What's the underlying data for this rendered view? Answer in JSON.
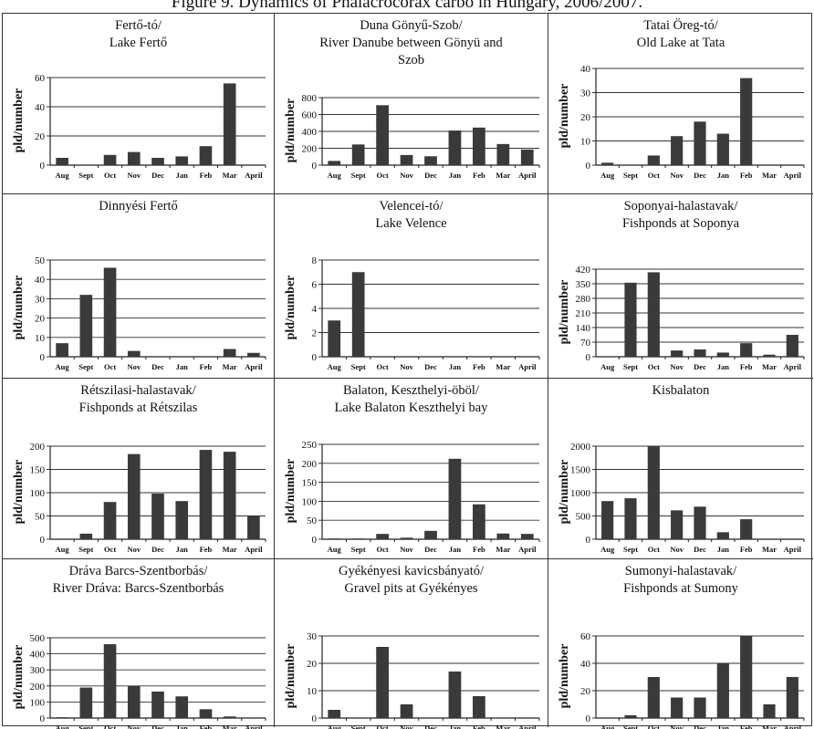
{
  "figure_title": "Figure 9. Dynamics of Phalacrocorax carbo in Hungary, 2006/2007.",
  "chart_data": [
    {
      "type": "bar",
      "title": [
        "Fertő-tó/",
        "Lake Fertő"
      ],
      "ylabel": "pld/number",
      "categories": [
        "Aug",
        "Sept",
        "Oct",
        "Nov",
        "Dec",
        "Jan",
        "Feb",
        "Mar",
        "April"
      ],
      "values": [
        5,
        0,
        7,
        9,
        5,
        6,
        13,
        56,
        0
      ],
      "ylim": [
        0,
        60
      ],
      "yticks": [
        0,
        20,
        40,
        60
      ]
    },
    {
      "type": "bar",
      "title": [
        "Duna Gönyű-Szob/",
        "River Danube between Gönyü and",
        "Szob"
      ],
      "ylabel": "pld/number",
      "categories": [
        "Aug",
        "Sept",
        "Oct",
        "Nov",
        "Dec",
        "Jan",
        "Feb",
        "Mar",
        "April"
      ],
      "values": [
        50,
        245,
        710,
        120,
        105,
        410,
        445,
        250,
        185
      ],
      "ylim": [
        0,
        800
      ],
      "yticks": [
        0,
        200,
        400,
        600,
        800
      ]
    },
    {
      "type": "bar",
      "title": [
        "Tatai Öreg-tó/",
        "Old Lake at Tata"
      ],
      "ylabel": "pld/number",
      "categories": [
        "Aug",
        "Sept",
        "Oct",
        "Nov",
        "Dec",
        "Jan",
        "Feb",
        "Mar",
        "April"
      ],
      "values": [
        1,
        0,
        4,
        12,
        18,
        13,
        36,
        0,
        0
      ],
      "ylim": [
        0,
        40
      ],
      "yticks": [
        0,
        10,
        20,
        30,
        40
      ]
    },
    {
      "type": "bar",
      "title": [
        "Dinnyési Fertő"
      ],
      "ylabel": "pld/number",
      "categories": [
        "Aug",
        "Sept",
        "Oct",
        "Nov",
        "Dec",
        "Jan",
        "Feb",
        "Mar",
        "April"
      ],
      "values": [
        7,
        32,
        46,
        3,
        0,
        0,
        0,
        4,
        2
      ],
      "ylim": [
        0,
        50
      ],
      "yticks": [
        0,
        10,
        20,
        30,
        40,
        50
      ]
    },
    {
      "type": "bar",
      "title": [
        "Velencei-tó/",
        "Lake Velence"
      ],
      "ylabel": "pld/number",
      "categories": [
        "Aug",
        "Sept",
        "Oct",
        "Nov",
        "Dec",
        "Jan",
        "Feb",
        "Mar",
        "April"
      ],
      "values": [
        3,
        7,
        0,
        0,
        0,
        0,
        0,
        0,
        0
      ],
      "ylim": [
        0,
        8
      ],
      "yticks": [
        0,
        2,
        4,
        6,
        8
      ]
    },
    {
      "type": "bar",
      "title": [
        "Soponyai-halastavak/",
        "Fishponds at Soponya"
      ],
      "ylabel": "pld/number",
      "categories": [
        "Aug",
        "Sept",
        "Oct",
        "Nov",
        "Dec",
        "Jan",
        "Feb",
        "Mar",
        "April"
      ],
      "values": [
        0,
        355,
        405,
        30,
        35,
        20,
        65,
        10,
        105
      ],
      "ylim": [
        0,
        420
      ],
      "yticks": [
        0,
        70,
        140,
        210,
        280,
        350,
        420
      ]
    },
    {
      "type": "bar",
      "title": [
        "Rétszilasi-halastavak/",
        "Fishponds at Rétszilas"
      ],
      "ylabel": "pld/number",
      "categories": [
        "Aug",
        "Sept",
        "Oct",
        "Nov",
        "Dec",
        "Jan",
        "Feb",
        "Mar",
        "April"
      ],
      "values": [
        0,
        12,
        80,
        183,
        98,
        82,
        192,
        188,
        50
      ],
      "ylim": [
        0,
        200
      ],
      "yticks": [
        0,
        50,
        100,
        150,
        200
      ]
    },
    {
      "type": "bar",
      "title": [
        "Balaton, Keszthelyi-öböl/",
        "Lake Balaton Keszthelyi bay"
      ],
      "ylabel": "pld/number",
      "categories": [
        "Aug",
        "Sept",
        "Oct",
        "Nov",
        "Dec",
        "Jan",
        "Feb",
        "Mar",
        "April"
      ],
      "values": [
        2,
        2,
        14,
        4,
        22,
        212,
        92,
        15,
        14
      ],
      "ylim": [
        0,
        250
      ],
      "yticks": [
        0,
        50,
        100,
        150,
        200,
        250
      ]
    },
    {
      "type": "bar",
      "title": [
        "Kisbalaton"
      ],
      "ylabel": "pld/number",
      "categories": [
        "Aug",
        "Sept",
        "Oct",
        "Nov",
        "Dec",
        "Jan",
        "Feb",
        "Mar",
        "April"
      ],
      "values": [
        820,
        880,
        2000,
        620,
        700,
        150,
        430,
        0,
        0
      ],
      "ylim": [
        0,
        2000
      ],
      "yticks": [
        0,
        500,
        1000,
        1500,
        2000
      ]
    },
    {
      "type": "bar",
      "title": [
        "Dráva Barcs-Szentborbás/",
        "River Dráva: Barcs-Szentborbás"
      ],
      "ylabel": "pld/number",
      "categories": [
        "Aug",
        "Sept",
        "Oct",
        "Nov",
        "Dec",
        "Jan",
        "Feb",
        "Mar",
        "April"
      ],
      "values": [
        5,
        190,
        460,
        200,
        165,
        135,
        55,
        10,
        0
      ],
      "ylim": [
        0,
        500
      ],
      "yticks": [
        0,
        100,
        200,
        300,
        400,
        500
      ]
    },
    {
      "type": "bar",
      "title": [
        "Gyékényesi kavicsbányató/",
        "Gravel pits at Gyékényes"
      ],
      "ylabel": "pld/number",
      "categories": [
        "Aug",
        "Sept",
        "Oct",
        "Nov",
        "Dec",
        "Jan",
        "Feb",
        "Mar",
        "April"
      ],
      "values": [
        3,
        0,
        26,
        5,
        0,
        17,
        8,
        0,
        0
      ],
      "ylim": [
        0,
        30
      ],
      "yticks": [
        0,
        10,
        20,
        30
      ]
    },
    {
      "type": "bar",
      "title": [
        "Sumonyi-halastavak/",
        "Fishponds at Sumony"
      ],
      "ylabel": "pld/number",
      "categories": [
        "Aug",
        "Sept",
        "Oct",
        "Nov",
        "Dec",
        "Jan",
        "Feb",
        "Mar",
        "April"
      ],
      "values": [
        0,
        2,
        30,
        15,
        15,
        40,
        60,
        10,
        30
      ],
      "ylim": [
        0,
        60
      ],
      "yticks": [
        0,
        20,
        40,
        60
      ]
    }
  ]
}
